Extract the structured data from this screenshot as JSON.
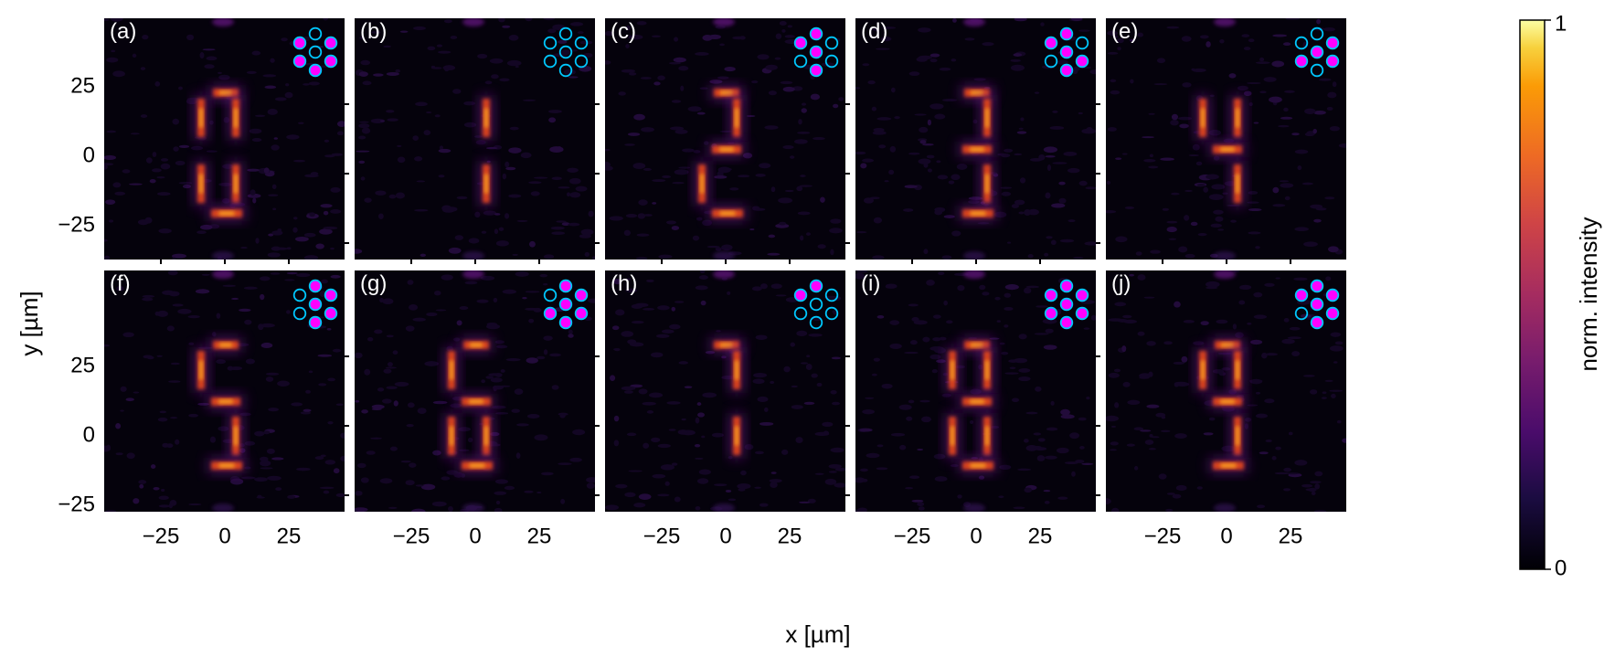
{
  "figure": {
    "xlabel": "x [µm]",
    "ylabel": "y [µm]",
    "x_ticks": [
      "−25",
      "0",
      "25"
    ],
    "y_ticks": [
      "25",
      "0",
      "−25"
    ],
    "colorbar": {
      "label": "norm. intensity",
      "max_label": "1",
      "min_label": "0",
      "colormap": "inferno"
    },
    "colors": {
      "filled_dot": "#ff00ff",
      "ring": "#00c8ff",
      "panel_background": "#05020c",
      "glow_hot": "#ffb020",
      "glow_mid": "#d8421a",
      "glow_low": "#6a1488"
    },
    "panels": [
      {
        "label": "(a)",
        "segments": [
          "A",
          "B",
          "C",
          "D",
          "E",
          "F"
        ],
        "dots": [
          0,
          1,
          1,
          0,
          1,
          1,
          1
        ]
      },
      {
        "label": "(b)",
        "segments": [
          "B",
          "C"
        ],
        "dots": [
          0,
          0,
          0,
          0,
          0,
          0,
          0
        ]
      },
      {
        "label": "(c)",
        "segments": [
          "A",
          "B",
          "E",
          "D",
          "G"
        ],
        "dots": [
          1,
          1,
          0,
          1,
          0,
          0,
          1
        ]
      },
      {
        "label": "(d)",
        "segments": [
          "A",
          "B",
          "C",
          "D",
          "G"
        ],
        "dots": [
          1,
          1,
          0,
          1,
          0,
          1,
          1
        ]
      },
      {
        "label": "(e)",
        "segments": [
          "F",
          "B",
          "G",
          "C"
        ],
        "dots": [
          0,
          0,
          1,
          1,
          1,
          1,
          0
        ]
      },
      {
        "label": "(f)",
        "segments": [
          "A",
          "F",
          "G",
          "C",
          "D"
        ],
        "dots": [
          1,
          0,
          1,
          1,
          0,
          1,
          1
        ]
      },
      {
        "label": "(g)",
        "segments": [
          "A",
          "F",
          "G",
          "E",
          "C",
          "D"
        ],
        "dots": [
          1,
          0,
          1,
          1,
          1,
          1,
          1
        ]
      },
      {
        "label": "(h)",
        "segments": [
          "A",
          "B",
          "C"
        ],
        "dots": [
          1,
          1,
          0,
          0,
          0,
          0,
          0
        ]
      },
      {
        "label": "(i)",
        "segments": [
          "A",
          "B",
          "C",
          "D",
          "E",
          "F",
          "G"
        ],
        "dots": [
          1,
          1,
          1,
          1,
          1,
          1,
          1
        ]
      },
      {
        "label": "(j)",
        "segments": [
          "A",
          "B",
          "C",
          "D",
          "F",
          "G"
        ],
        "dots": [
          1,
          1,
          1,
          1,
          0,
          1,
          1
        ]
      }
    ]
  }
}
